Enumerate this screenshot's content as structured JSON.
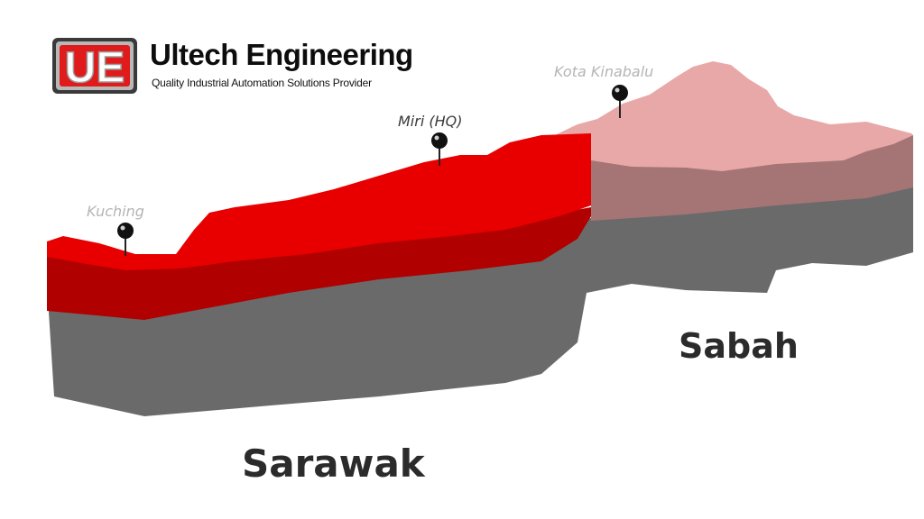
{
  "brand": {
    "name": "Ultech Engineering",
    "tagline": "Quality Industrial Automation Solutions Provider",
    "logo_letters": "UE",
    "colors": {
      "red": "#e01b1b",
      "silver": "#b8b8b8",
      "dark": "#3a3a3a"
    }
  },
  "map": {
    "regions": [
      {
        "id": "sarawak",
        "label": "Sarawak",
        "top_color": "#e80000",
        "side_color": "#b00000",
        "base_color": "#6e6e6e"
      },
      {
        "id": "sabah",
        "label": "Sabah",
        "top_color": "#e8a8a8",
        "side_color": "#a57575",
        "base_color": "#6e6e6e"
      }
    ],
    "pins": [
      {
        "id": "kuching",
        "label": "Kuching",
        "label_color": "#b5b5b5"
      },
      {
        "id": "miri",
        "label": "Miri (HQ)",
        "label_color": "#3a3a3a"
      },
      {
        "id": "kota-kinabalu",
        "label": "Kota Kinabalu",
        "label_color": "#b5b5b5"
      }
    ],
    "pin_color": "#111111"
  }
}
